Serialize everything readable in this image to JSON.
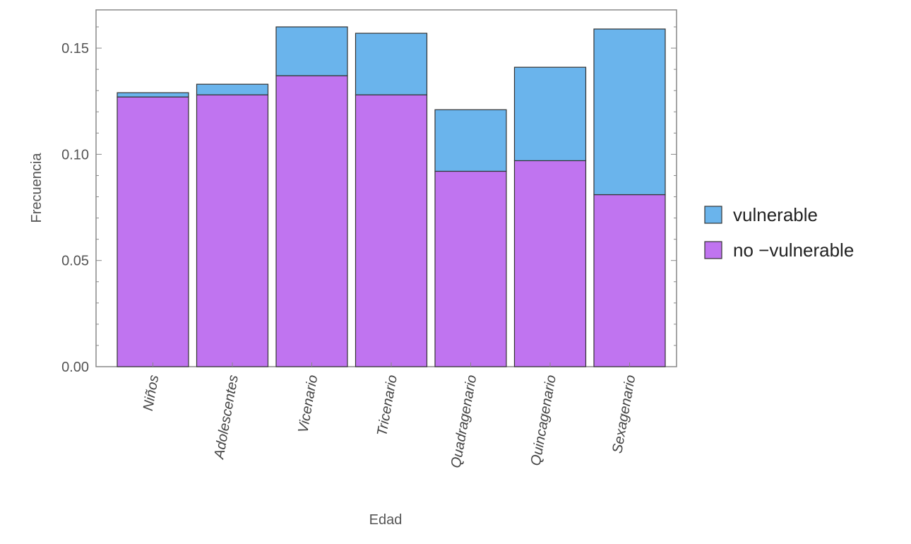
{
  "chart_data": {
    "type": "bar",
    "stacked": true,
    "title": "",
    "xlabel": "Edad",
    "ylabel": "Frecuencia",
    "ylim": [
      0,
      0.168
    ],
    "yticks": [
      "0.00",
      "0.05",
      "0.10",
      "0.15"
    ],
    "categories": [
      "Niños",
      "Adolescentes",
      "Vicenario",
      "Tricenario",
      "Quadragenario",
      "Quincagenario",
      "Sexagenario"
    ],
    "series": [
      {
        "name": "no −vulnerable",
        "color": "#c074f0",
        "values": [
          0.127,
          0.128,
          0.137,
          0.128,
          0.092,
          0.097,
          0.081
        ]
      },
      {
        "name": "vulnerable",
        "color": "#6ab4ec",
        "values": [
          0.002,
          0.005,
          0.023,
          0.029,
          0.029,
          0.044,
          0.078
        ]
      }
    ],
    "legend": {
      "placement": "right",
      "order": [
        "vulnerable",
        "no −vulnerable"
      ]
    },
    "grid": false,
    "frame_color": "#888888",
    "bar_stroke": "#333333"
  }
}
